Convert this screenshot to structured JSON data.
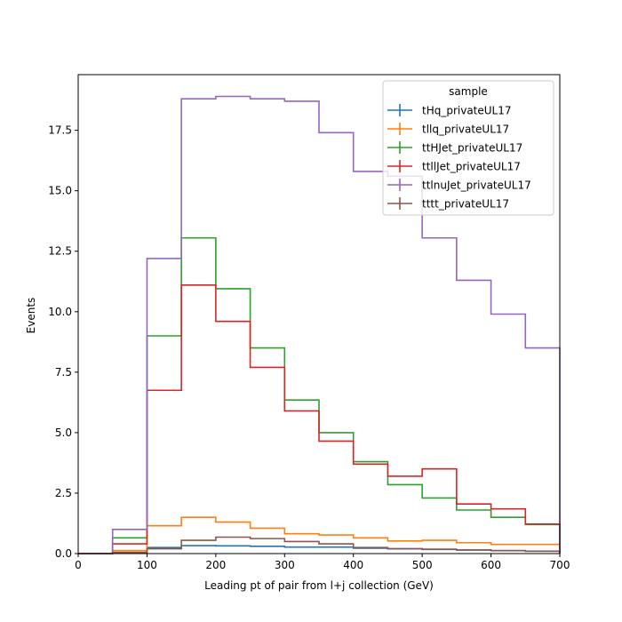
{
  "chart_data": {
    "type": "histogram-step",
    "title": "",
    "xlabel": "Leading pt of pair from l+j collection (GeV)",
    "ylabel": "Events",
    "xlim": [
      0,
      700
    ],
    "ylim": [
      0,
      19.8
    ],
    "x_ticks": [
      0,
      100,
      200,
      300,
      400,
      500,
      600,
      700
    ],
    "x_tick_labels": [
      "0",
      "100",
      "200",
      "300",
      "400",
      "500",
      "600",
      "700"
    ],
    "y_ticks": [
      0,
      2.5,
      5,
      7.5,
      10,
      12.5,
      15,
      17.5
    ],
    "y_tick_labels": [
      "0.0",
      "2.5",
      "5.0",
      "7.5",
      "10.0",
      "12.5",
      "15.0",
      "17.5"
    ],
    "grid": false,
    "legend": {
      "title": "sample",
      "placement": "top-right"
    },
    "bin_edges": [
      0,
      50,
      100,
      150,
      200,
      250,
      300,
      350,
      400,
      450,
      500,
      550,
      600,
      650,
      700
    ],
    "series": [
      {
        "name": "tHq_privateUL17",
        "color": "#1f77b4",
        "values": [
          0.0,
          0.02,
          0.25,
          0.33,
          0.32,
          0.3,
          0.27,
          0.27,
          0.22,
          0.2,
          0.17,
          0.15,
          0.12,
          0.1
        ]
      },
      {
        "name": "tllq_privateUL17",
        "color": "#ff7f0e",
        "values": [
          0.0,
          0.12,
          1.15,
          1.5,
          1.3,
          1.05,
          0.82,
          0.77,
          0.65,
          0.52,
          0.55,
          0.45,
          0.38,
          0.38
        ]
      },
      {
        "name": "ttHJet_privateUL17",
        "color": "#2ca02c",
        "values": [
          0.0,
          0.65,
          9.0,
          13.05,
          10.95,
          8.5,
          6.35,
          5.0,
          3.8,
          2.85,
          2.3,
          1.8,
          1.5,
          1.2
        ]
      },
      {
        "name": "ttllJet_privateUL17",
        "color": "#d62728",
        "values": [
          0.0,
          0.4,
          6.75,
          11.1,
          9.6,
          7.7,
          5.9,
          4.65,
          3.7,
          3.2,
          3.5,
          2.05,
          1.85,
          1.22
        ]
      },
      {
        "name": "ttlnuJet_privateUL17",
        "color": "#9467bd",
        "values": [
          0.0,
          1.0,
          12.2,
          18.8,
          18.9,
          18.8,
          18.7,
          17.4,
          15.8,
          15.6,
          13.05,
          11.3,
          9.9,
          8.5
        ]
      },
      {
        "name": "tttt_privateUL17",
        "color": "#8c564b",
        "values": [
          0.0,
          0.05,
          0.2,
          0.55,
          0.68,
          0.62,
          0.5,
          0.4,
          0.25,
          0.2,
          0.18,
          0.15,
          0.12,
          0.1
        ]
      }
    ]
  }
}
